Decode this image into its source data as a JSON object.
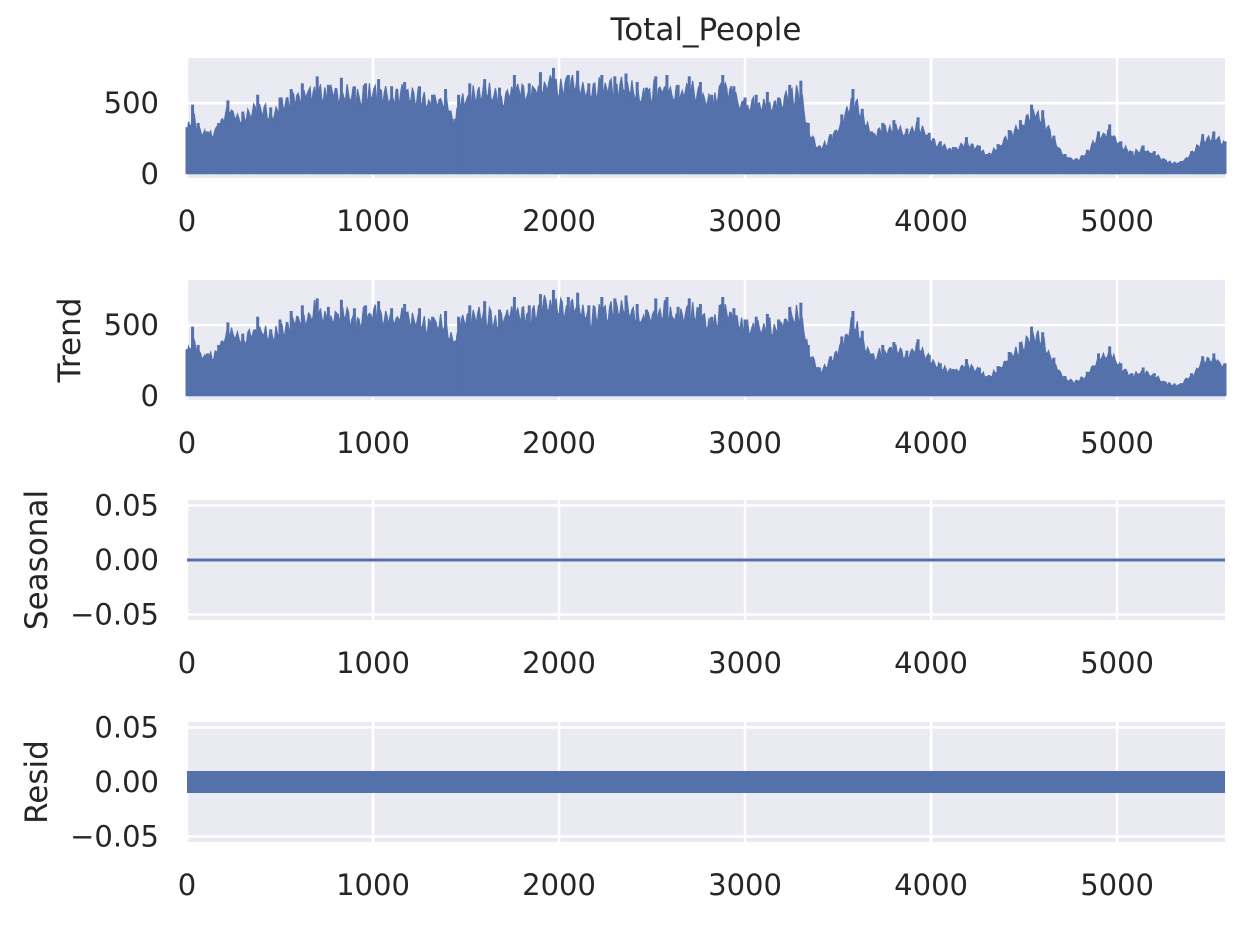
{
  "chart_data": [
    {
      "type": "area",
      "title": "Total_People",
      "ylabel": "",
      "xlim": [
        0,
        5580
      ],
      "ylim": [
        -30,
        820
      ],
      "xticks": [
        0,
        1000,
        2000,
        3000,
        4000,
        5000
      ],
      "yticks": [
        0,
        500
      ],
      "grid": true,
      "style": "filled-oscillation",
      "color": "#5471ab",
      "envelope": {
        "x": [
          0,
          30,
          60,
          110,
          170,
          220,
          300,
          380,
          450,
          500,
          560,
          620,
          700,
          760,
          830,
          900,
          960,
          1030,
          1100,
          1170,
          1250,
          1320,
          1390,
          1440,
          1460,
          1520,
          1600,
          1680,
          1760,
          1840,
          1900,
          1970,
          2050,
          2100,
          2160,
          2230,
          2300,
          2360,
          2420,
          2470,
          2520,
          2580,
          2640,
          2700,
          2760,
          2820,
          2880,
          2940,
          3000,
          3060,
          3120,
          3180,
          3240,
          3300,
          3340,
          3400,
          3460,
          3520,
          3580,
          3630,
          3680,
          3740,
          3800,
          3870,
          3930,
          3990,
          4050,
          4120,
          4190,
          4260,
          4300,
          4360,
          4420,
          4480,
          4540,
          4600,
          4660,
          4720,
          4780,
          4840,
          4900,
          4960,
          5020,
          5080,
          5140,
          5200,
          5260,
          5330,
          5400,
          5460,
          5520,
          5580
        ],
        "y": [
          330,
          490,
          360,
          300,
          360,
          520,
          440,
          560,
          470,
          540,
          600,
          640,
          690,
          630,
          680,
          620,
          640,
          670,
          620,
          650,
          620,
          560,
          600,
          390,
          560,
          640,
          670,
          610,
          700,
          640,
          720,
          750,
          700,
          730,
          640,
          700,
          690,
          710,
          650,
          610,
          690,
          700,
          630,
          690,
          650,
          560,
          700,
          620,
          540,
          560,
          580,
          540,
          630,
          660,
          360,
          200,
          280,
          420,
          600,
          460,
          300,
          360,
          380,
          320,
          400,
          290,
          230,
          190,
          260,
          200,
          140,
          210,
          310,
          380,
          490,
          450,
          270,
          140,
          110,
          170,
          300,
          350,
          230,
          160,
          200,
          160,
          100,
          80,
          160,
          280,
          300,
          230
        ]
      }
    },
    {
      "type": "area",
      "title": "",
      "ylabel": "Trend",
      "xlim": [
        0,
        5580
      ],
      "ylim": [
        -30,
        820
      ],
      "xticks": [
        0,
        1000,
        2000,
        3000,
        4000,
        5000
      ],
      "yticks": [
        0,
        500
      ],
      "grid": true,
      "style": "filled-oscillation",
      "color": "#5471ab",
      "envelope": {
        "x": [
          0,
          30,
          60,
          110,
          170,
          220,
          300,
          380,
          450,
          500,
          560,
          620,
          700,
          760,
          830,
          900,
          960,
          1030,
          1100,
          1170,
          1250,
          1320,
          1390,
          1440,
          1460,
          1520,
          1600,
          1680,
          1760,
          1840,
          1900,
          1970,
          2050,
          2100,
          2160,
          2230,
          2300,
          2360,
          2420,
          2470,
          2520,
          2580,
          2640,
          2700,
          2760,
          2820,
          2880,
          2940,
          3000,
          3060,
          3120,
          3180,
          3240,
          3300,
          3340,
          3400,
          3460,
          3520,
          3580,
          3630,
          3680,
          3740,
          3800,
          3870,
          3930,
          3990,
          4050,
          4120,
          4190,
          4260,
          4300,
          4360,
          4420,
          4480,
          4540,
          4600,
          4660,
          4720,
          4780,
          4840,
          4900,
          4960,
          5020,
          5080,
          5140,
          5200,
          5260,
          5330,
          5400,
          5460,
          5520,
          5580
        ],
        "y": [
          330,
          490,
          360,
          300,
          360,
          520,
          440,
          560,
          470,
          540,
          600,
          640,
          690,
          630,
          680,
          620,
          640,
          670,
          620,
          650,
          620,
          560,
          600,
          390,
          560,
          640,
          670,
          610,
          700,
          640,
          720,
          750,
          700,
          730,
          640,
          700,
          690,
          710,
          650,
          610,
          690,
          700,
          630,
          690,
          650,
          560,
          700,
          620,
          540,
          560,
          580,
          540,
          630,
          660,
          360,
          200,
          280,
          420,
          600,
          460,
          300,
          360,
          380,
          320,
          400,
          290,
          230,
          190,
          260,
          200,
          140,
          210,
          310,
          380,
          490,
          450,
          270,
          140,
          110,
          170,
          300,
          350,
          230,
          160,
          200,
          160,
          100,
          80,
          160,
          280,
          300,
          230
        ]
      }
    },
    {
      "type": "line",
      "title": "",
      "ylabel": "Seasonal",
      "xlim": [
        0,
        5580
      ],
      "ylim": [
        -0.055,
        0.055
      ],
      "xticks": [
        0,
        1000,
        2000,
        3000,
        4000,
        5000
      ],
      "yticks": [
        0.05,
        0.0,
        -0.05
      ],
      "ytick_labels": [
        "0.05",
        "0.00",
        "−0.05"
      ],
      "grid": true,
      "color": "#5471ab",
      "x": [
        0,
        5580
      ],
      "y": [
        0.0,
        0.0
      ]
    },
    {
      "type": "scatter",
      "title": "",
      "ylabel": "Resid",
      "xlim": [
        0,
        5580
      ],
      "ylim": [
        -0.055,
        0.055
      ],
      "xticks": [
        0,
        1000,
        2000,
        3000,
        4000,
        5000
      ],
      "yticks": [
        0.05,
        0.0,
        -0.05
      ],
      "ytick_labels": [
        "0.05",
        "0.00",
        "−0.05"
      ],
      "grid": true,
      "color": "#5471ab",
      "x_range": [
        0,
        5580
      ],
      "y": 0.0
    }
  ]
}
